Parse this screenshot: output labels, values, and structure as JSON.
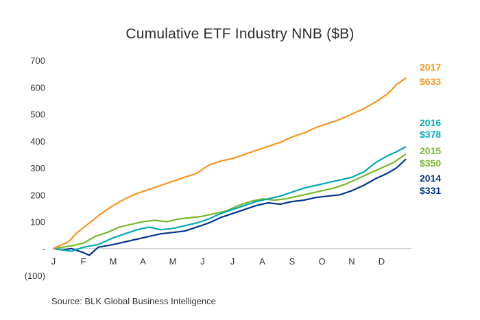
{
  "chart_data": {
    "type": "line",
    "title": "Cumulative ETF Industry NNB ($B)",
    "xlabel": "",
    "ylabel": "",
    "x_ticks": [
      "J",
      "F",
      "M",
      "A",
      "M",
      "J",
      "J",
      "A",
      "S",
      "O",
      "N",
      "D"
    ],
    "y_ticks": [
      {
        "value": 700,
        "label": "700"
      },
      {
        "value": 600,
        "label": "600"
      },
      {
        "value": 500,
        "label": "500"
      },
      {
        "value": 400,
        "label": "400"
      },
      {
        "value": 300,
        "label": "300"
      },
      {
        "value": 200,
        "label": "200"
      },
      {
        "value": 100,
        "label": "100"
      },
      {
        "value": 0,
        "label": "-"
      },
      {
        "value": -100,
        "label": "(100)"
      }
    ],
    "ylim": [
      -100,
      700
    ],
    "xlim": [
      0,
      12
    ],
    "grid": false,
    "legend": "right-end labels",
    "series": [
      {
        "name": "2017",
        "end_label": "$633",
        "color": "#F7941D",
        "points": [
          [
            0,
            0
          ],
          [
            0.2,
            10
          ],
          [
            0.5,
            25
          ],
          [
            0.8,
            60
          ],
          [
            1.2,
            95
          ],
          [
            1.6,
            130
          ],
          [
            2,
            160
          ],
          [
            2.4,
            185
          ],
          [
            2.8,
            205
          ],
          [
            3.2,
            220
          ],
          [
            3.6,
            235
          ],
          [
            4,
            250
          ],
          [
            4.4,
            265
          ],
          [
            4.8,
            280
          ],
          [
            5,
            295
          ],
          [
            5.2,
            310
          ],
          [
            5.6,
            325
          ],
          [
            6,
            335
          ],
          [
            6.4,
            350
          ],
          [
            6.8,
            365
          ],
          [
            7.2,
            380
          ],
          [
            7.6,
            395
          ],
          [
            8,
            415
          ],
          [
            8.4,
            430
          ],
          [
            8.8,
            450
          ],
          [
            9.2,
            465
          ],
          [
            9.6,
            480
          ],
          [
            10,
            500
          ],
          [
            10.4,
            520
          ],
          [
            10.8,
            545
          ],
          [
            11.2,
            575
          ],
          [
            11.5,
            610
          ],
          [
            11.8,
            633
          ]
        ]
      },
      {
        "name": "2016",
        "end_label": "$378",
        "color": "#00A9B5",
        "points": [
          [
            0,
            0
          ],
          [
            0.3,
            -5
          ],
          [
            0.6,
            -10
          ],
          [
            1,
            5
          ],
          [
            1.5,
            15
          ],
          [
            2,
            40
          ],
          [
            2.4,
            55
          ],
          [
            2.8,
            70
          ],
          [
            3.2,
            80
          ],
          [
            3.6,
            70
          ],
          [
            4,
            75
          ],
          [
            4.4,
            85
          ],
          [
            4.8,
            95
          ],
          [
            5.2,
            110
          ],
          [
            5.6,
            130
          ],
          [
            6,
            145
          ],
          [
            6.4,
            160
          ],
          [
            6.8,
            175
          ],
          [
            7.2,
            185
          ],
          [
            7.6,
            195
          ],
          [
            8,
            210
          ],
          [
            8.4,
            225
          ],
          [
            8.8,
            235
          ],
          [
            9.2,
            245
          ],
          [
            9.6,
            255
          ],
          [
            10,
            265
          ],
          [
            10.4,
            285
          ],
          [
            10.8,
            320
          ],
          [
            11.2,
            345
          ],
          [
            11.5,
            360
          ],
          [
            11.8,
            378
          ]
        ]
      },
      {
        "name": "2015",
        "end_label": "$350",
        "color": "#76B82A",
        "points": [
          [
            0,
            0
          ],
          [
            0.3,
            5
          ],
          [
            0.6,
            10
          ],
          [
            1,
            20
          ],
          [
            1.4,
            45
          ],
          [
            1.8,
            60
          ],
          [
            2.2,
            80
          ],
          [
            2.6,
            90
          ],
          [
            3,
            100
          ],
          [
            3.4,
            105
          ],
          [
            3.8,
            100
          ],
          [
            4.2,
            110
          ],
          [
            4.6,
            115
          ],
          [
            5,
            120
          ],
          [
            5.4,
            130
          ],
          [
            5.8,
            140
          ],
          [
            6.2,
            160
          ],
          [
            6.6,
            175
          ],
          [
            7,
            185
          ],
          [
            7.4,
            180
          ],
          [
            7.8,
            185
          ],
          [
            8.2,
            195
          ],
          [
            8.6,
            205
          ],
          [
            9,
            215
          ],
          [
            9.4,
            225
          ],
          [
            9.8,
            240
          ],
          [
            10.2,
            260
          ],
          [
            10.6,
            280
          ],
          [
            11,
            300
          ],
          [
            11.4,
            320
          ],
          [
            11.8,
            350
          ]
        ]
      },
      {
        "name": "2014",
        "end_label": "$331",
        "color": "#00338D",
        "points": [
          [
            0,
            0
          ],
          [
            0.3,
            -5
          ],
          [
            0.6,
            0
          ],
          [
            1,
            -15
          ],
          [
            1.2,
            -25
          ],
          [
            1.5,
            5
          ],
          [
            2,
            15
          ],
          [
            2.4,
            25
          ],
          [
            2.8,
            35
          ],
          [
            3.2,
            45
          ],
          [
            3.6,
            55
          ],
          [
            4,
            60
          ],
          [
            4.4,
            65
          ],
          [
            4.8,
            80
          ],
          [
            5.2,
            95
          ],
          [
            5.6,
            115
          ],
          [
            6,
            130
          ],
          [
            6.4,
            145
          ],
          [
            6.8,
            160
          ],
          [
            7.2,
            170
          ],
          [
            7.6,
            165
          ],
          [
            8,
            175
          ],
          [
            8.4,
            180
          ],
          [
            8.8,
            190
          ],
          [
            9.2,
            195
          ],
          [
            9.6,
            200
          ],
          [
            10,
            215
          ],
          [
            10.4,
            235
          ],
          [
            10.8,
            260
          ],
          [
            11.2,
            280
          ],
          [
            11.5,
            300
          ],
          [
            11.8,
            331
          ]
        ]
      }
    ],
    "source": "Source: BLK Global Business Intelligence"
  }
}
